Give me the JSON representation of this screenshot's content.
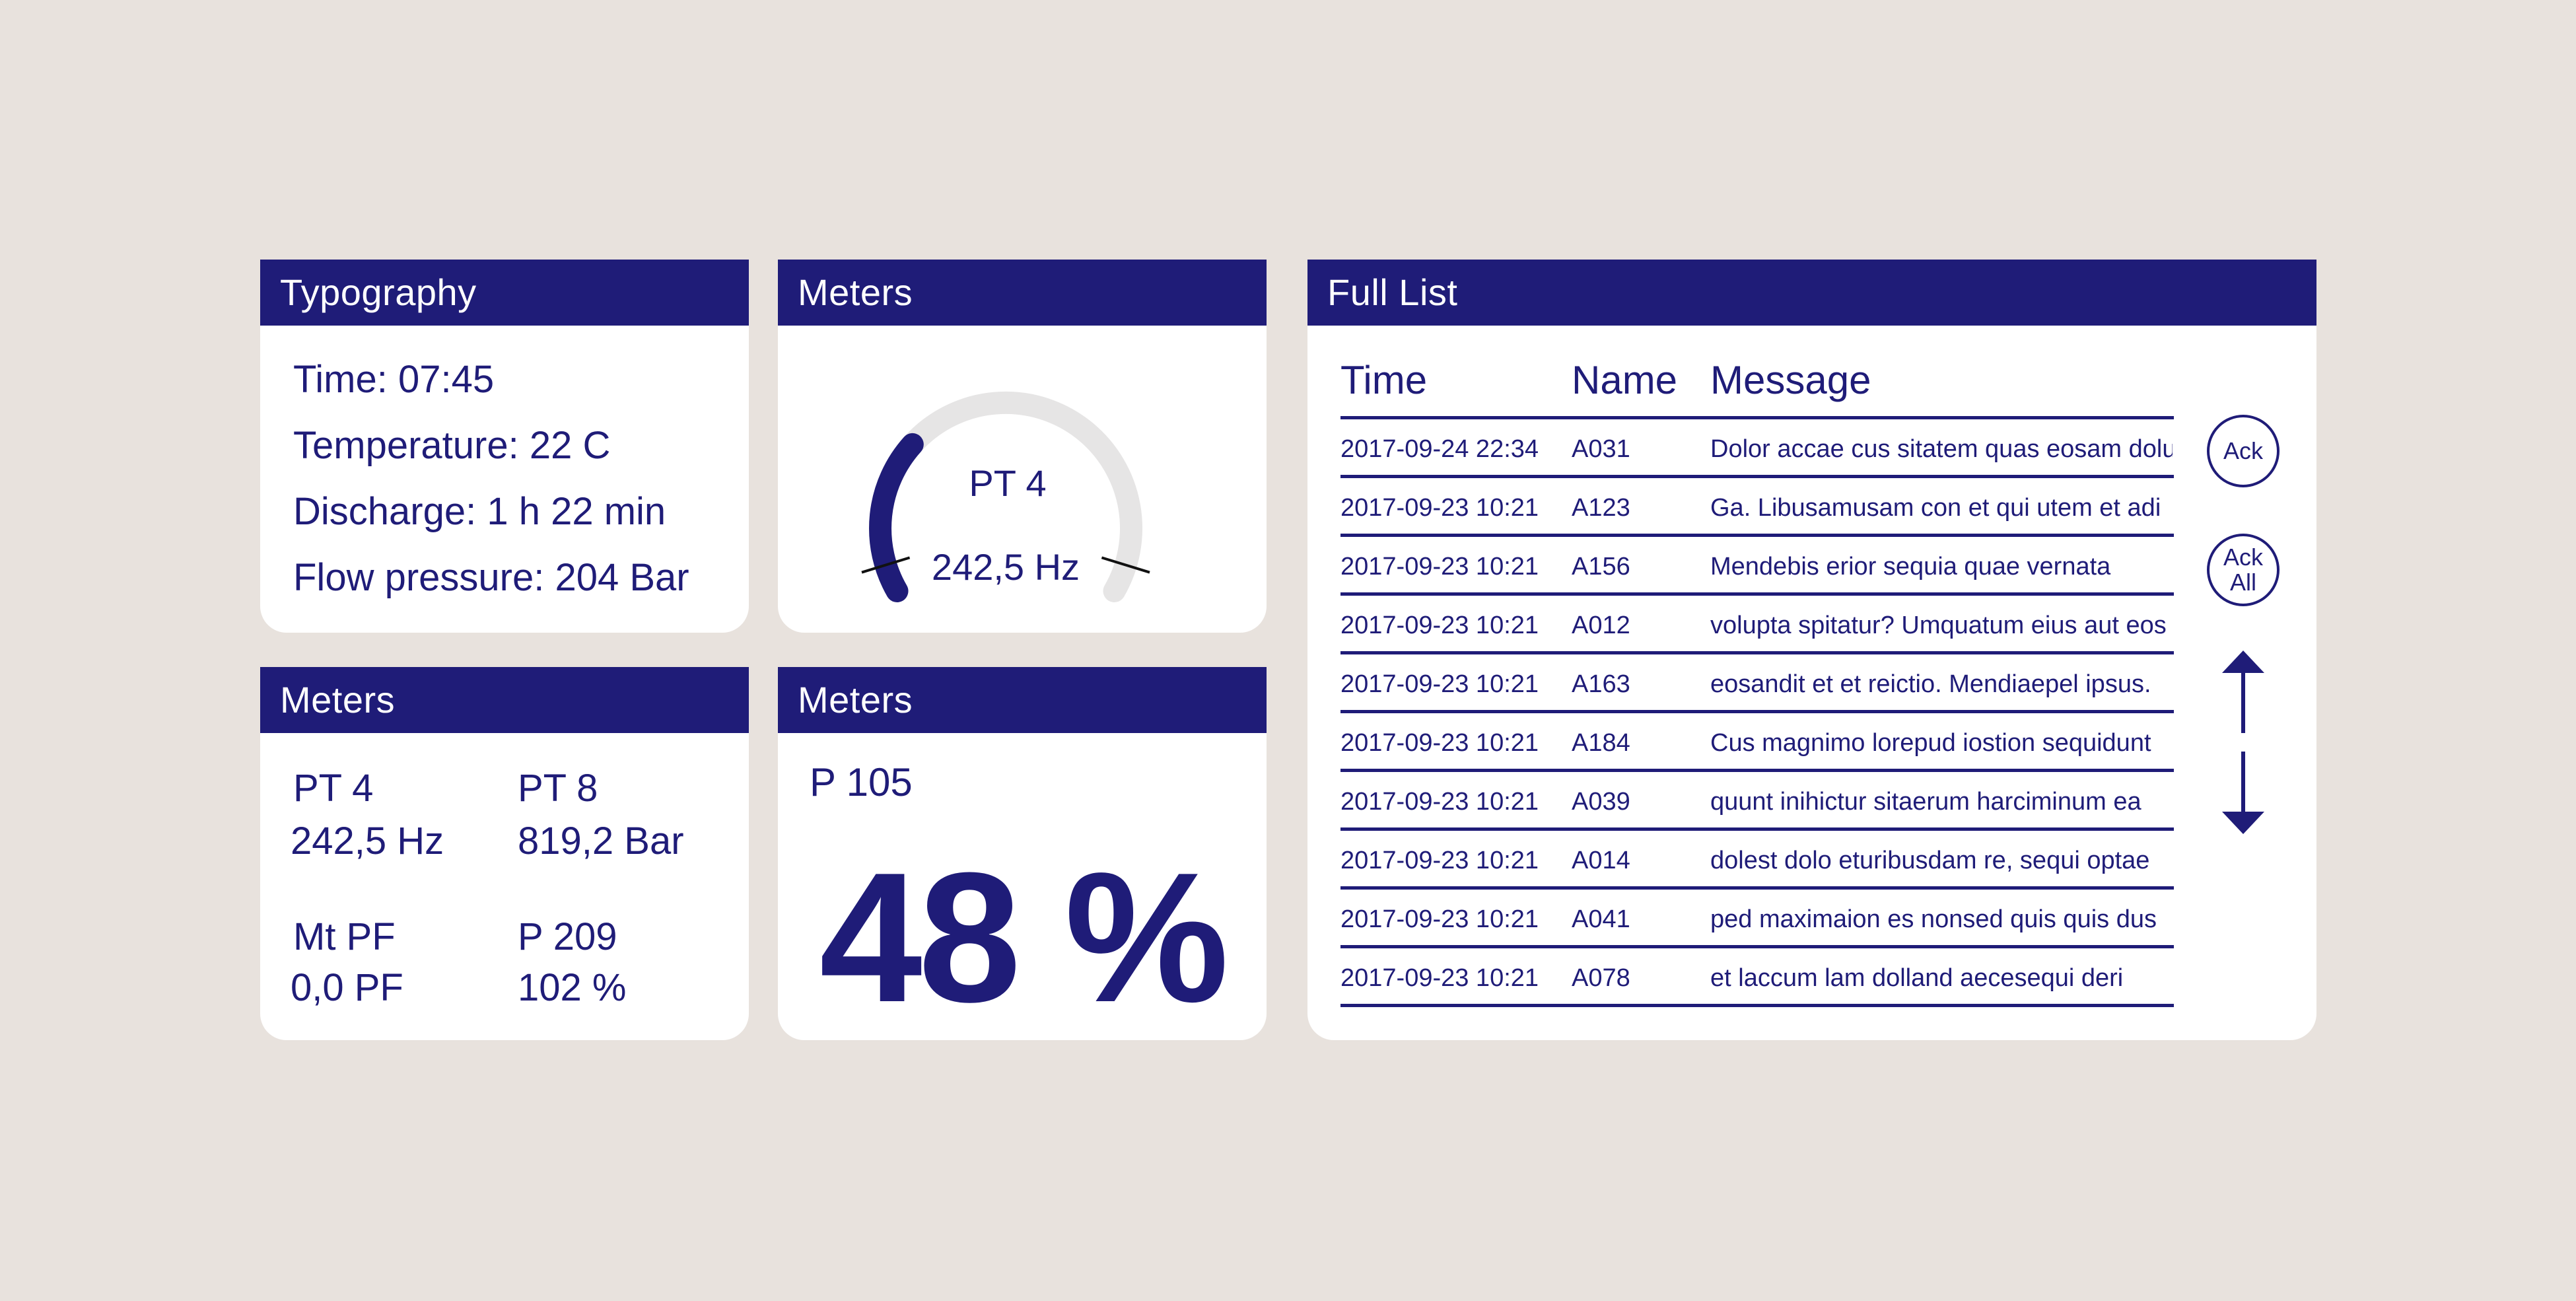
{
  "typography": {
    "title": "Typography",
    "lines": [
      "Time: 07:45",
      "Temperature: 22 C",
      "Discharge: 1 h 22 min",
      "Flow pressure: 204 Bar"
    ]
  },
  "gauge_panel": {
    "title": "Meters",
    "label": "PT 4",
    "value": "242,5 Hz",
    "fill_fraction": 0.3,
    "colors": {
      "track": "#e6e5e5",
      "fill": "#1f1c78"
    }
  },
  "values_panel": {
    "title": "Meters",
    "items": [
      {
        "label": "PT 4",
        "value": "242,5 Hz"
      },
      {
        "label": "PT 8",
        "value": "819,2 Bar"
      },
      {
        "label": "Mt PF",
        "value": "0,0 PF"
      },
      {
        "label": "P 209",
        "value": "102 %"
      }
    ]
  },
  "percent_panel": {
    "title": "Meters",
    "label": "P 105",
    "value": "48 %"
  },
  "full_list": {
    "title": "Full List",
    "columns": [
      "Time",
      "Name",
      "Message"
    ],
    "rows": [
      {
        "time": "2017-09-24 22:34",
        "name": "A031",
        "message": "Dolor accae cus sitatem quas eosam dolu"
      },
      {
        "time": "2017-09-23 10:21",
        "name": "A123",
        "message": "Ga. Libusamusam con et qui utem et adi"
      },
      {
        "time": "2017-09-23 10:21",
        "name": "A156",
        "message": "Mendebis erior sequia quae vernata"
      },
      {
        "time": "2017-09-23 10:21",
        "name": "A012",
        "message": "volupta spitatur? Umquatum eius aut eos"
      },
      {
        "time": "2017-09-23 10:21",
        "name": "A163",
        "message": "eosandit et et reictio. Mendiaepel ipsus."
      },
      {
        "time": "2017-09-23 10:21",
        "name": "A184",
        "message": "Cus magnimo lorepud iostion sequidunt"
      },
      {
        "time": "2017-09-23 10:21",
        "name": "A039",
        "message": "quunt inihictur sitaerum harciminum ea"
      },
      {
        "time": "2017-09-23 10:21",
        "name": "A014",
        "message": "dolest dolo eturibusdam re, sequi optae"
      },
      {
        "time": "2017-09-23 10:21",
        "name": "A041",
        "message": "ped maximaion es nonsed quis quis dus"
      },
      {
        "time": "2017-09-23 10:21",
        "name": "A078",
        "message": "et laccum lam dolland aecesequi deri"
      }
    ],
    "ack_label": "Ack",
    "ack_all_label": [
      "Ack",
      "All"
    ],
    "icons": [
      "arrow-up-icon",
      "arrow-down-icon"
    ]
  },
  "colors": {
    "background": "#e8e2dd",
    "panel": "#ffffff",
    "accent": "#1f1c78"
  }
}
